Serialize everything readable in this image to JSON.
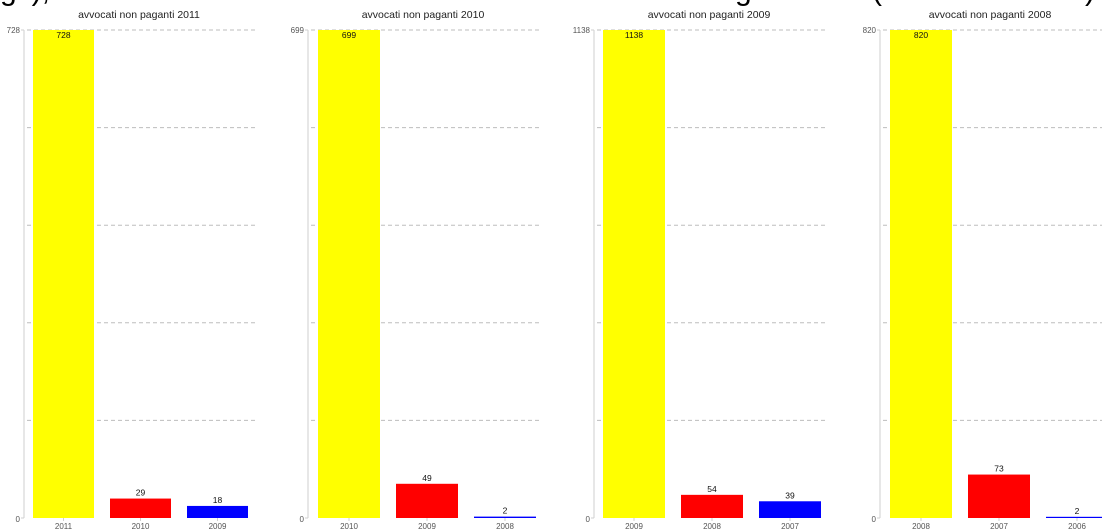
{
  "header_fragments": [
    "gi ),",
    "g",
    "(",
    ")"
  ],
  "chart_data": [
    {
      "type": "bar",
      "title": "avvocati non paganti 2011",
      "categories": [
        "2011",
        "2010",
        "2009"
      ],
      "values": [
        728,
        29,
        18
      ],
      "colors": [
        "#ffff00",
        "#ff0000",
        "#0000ff"
      ],
      "ylim": [
        0,
        728
      ],
      "ytick_labels": [
        "0",
        "728"
      ],
      "grid": true
    },
    {
      "type": "bar",
      "title": "avvocati non paganti 2010",
      "categories": [
        "2010",
        "2009",
        "2008"
      ],
      "values": [
        699,
        49,
        2
      ],
      "colors": [
        "#ffff00",
        "#ff0000",
        "#0000ff"
      ],
      "ylim": [
        0,
        699
      ],
      "ytick_labels": [
        "0",
        "699"
      ],
      "grid": true
    },
    {
      "type": "bar",
      "title": "avvocati non paganti 2009",
      "categories": [
        "2009",
        "2008",
        "2007"
      ],
      "values": [
        1138,
        54,
        39
      ],
      "colors": [
        "#ffff00",
        "#ff0000",
        "#0000ff"
      ],
      "ylim": [
        0,
        1138
      ],
      "ytick_labels": [
        "0",
        "1138"
      ],
      "grid": true
    },
    {
      "type": "bar",
      "title": "avvocati non paganti 2008",
      "categories": [
        "2008",
        "2007",
        "2006"
      ],
      "values": [
        820,
        73,
        2
      ],
      "colors": [
        "#ffff00",
        "#ff0000",
        "#0000ff"
      ],
      "ylim": [
        0,
        820
      ],
      "ytick_labels": [
        "0",
        "820"
      ],
      "grid": true
    }
  ]
}
